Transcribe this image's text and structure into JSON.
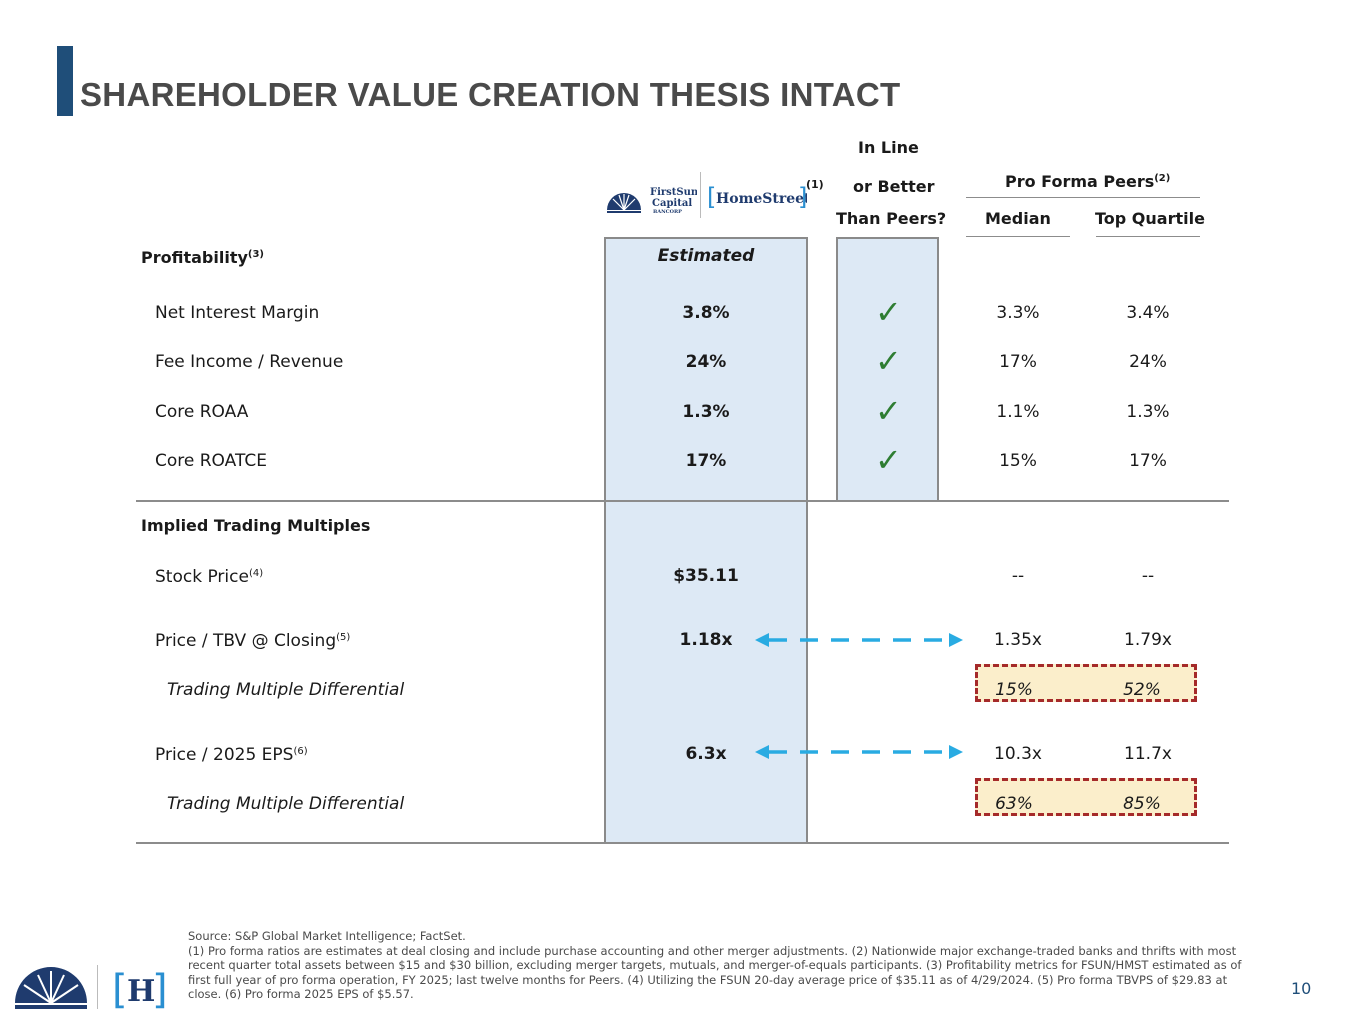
{
  "page": {
    "title": "SHAREHOLDER VALUE CREATION THESIS INTACT",
    "page_number": "10"
  },
  "header": {
    "logo_firstsun_text": [
      "FirstSun",
      "Capital",
      "BANCORP"
    ],
    "logo_homestreet_text": "HomeStreet",
    "logo_note": "(1)",
    "inline_col": [
      "In Line",
      "or Better",
      "Than Peers?"
    ],
    "peers_title": "Pro Forma Peers",
    "peers_note": "(2)",
    "median": "Median",
    "top_quartile": "Top Quartile"
  },
  "profitability": {
    "section_label": "Profitability",
    "section_note": "(3)",
    "estimated_label": "Estimated",
    "rows": [
      {
        "label": "Net Interest Margin",
        "estimated": "3.8%",
        "check": "✓",
        "median": "3.3%",
        "top_quartile": "3.4%"
      },
      {
        "label": "Fee Income / Revenue",
        "estimated": "24%",
        "check": "✓",
        "median": "17%",
        "top_quartile": "24%"
      },
      {
        "label": "Core ROAA",
        "estimated": "1.3%",
        "check": "✓",
        "median": "1.1%",
        "top_quartile": "1.3%"
      },
      {
        "label": "Core ROATCE",
        "estimated": "17%",
        "check": "✓",
        "median": "15%",
        "top_quartile": "17%"
      }
    ]
  },
  "multiples": {
    "section_label": "Implied Trading Multiples",
    "stock_price": {
      "label": "Stock Price",
      "note": "(4)",
      "estimated": "$35.11",
      "median": "--",
      "top_quartile": "--"
    },
    "price_tbv": {
      "label": "Price / TBV @ Closing",
      "note": "(5)",
      "estimated": "1.18x",
      "median": "1.35x",
      "top_quartile": "1.79x"
    },
    "tbv_diff": {
      "label": "Trading Multiple Differential",
      "median": "15%",
      "top_quartile": "52%"
    },
    "price_eps": {
      "label": "Price / 2025 EPS",
      "note": "(6)",
      "estimated": "6.3x",
      "median": "10.3x",
      "top_quartile": "11.7x"
    },
    "eps_diff": {
      "label": "Trading Multiple Differential",
      "median": "63%",
      "top_quartile": "85%"
    }
  },
  "footer": {
    "source": "Source: S&P Global Market Intelligence; FactSet.",
    "notes": "(1) Pro forma ratios are estimates at deal closing and include purchase accounting and other merger adjustments. (2) Nationwide major exchange-traded banks and thrifts with most recent quarter total assets between $15 and $30 billion, excluding merger targets, mutuals, and merger-of-equals participants. (3) Profitability metrics for FSUN/HMST estimated as of first full year of pro forma operation, FY 2025; last twelve months for Peers. (4) Utilizing the FSUN 20-day average price of $35.11 as of 4/29/2024. (5) Pro forma TBVPS of $29.83 at close. (6) Pro forma 2025 EPS of $5.57.",
    "logo_h": "H"
  },
  "colors": {
    "brand_navy": "#1f4e79",
    "check_green": "#2e7d32",
    "arrow_blue": "#29abe2",
    "dash_red": "#a52a2a",
    "highlight": "#fbeecb"
  }
}
